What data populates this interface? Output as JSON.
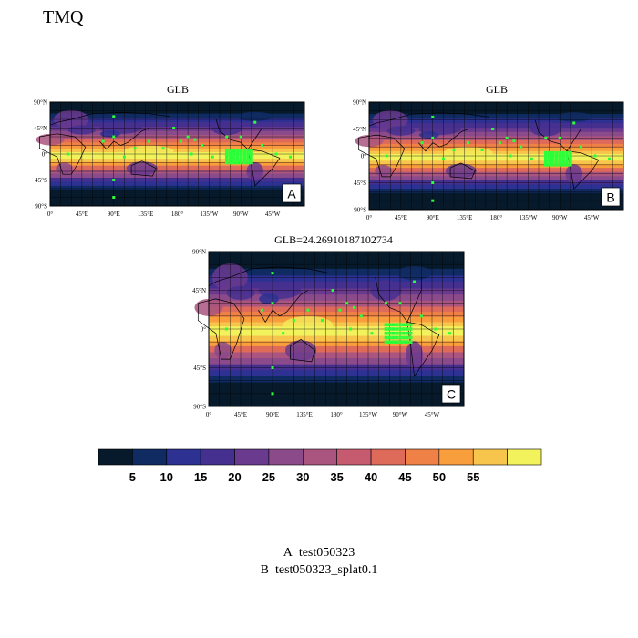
{
  "title": "TMQ",
  "panels": [
    {
      "title": "GLB",
      "letter": "A"
    },
    {
      "title": "GLB",
      "letter": "B"
    },
    {
      "title": "GLB=24.26910187102734",
      "letter": "C"
    }
  ],
  "axes": {
    "x_ticks": [
      "0°",
      "45°E",
      "90°E",
      "135°E",
      "180°",
      "135°W",
      "90°W",
      "45°W"
    ],
    "y_ticks": [
      "90°N",
      "45°N",
      "0°",
      "45°S",
      "90°S"
    ]
  },
  "colorbar": {
    "colors": [
      "#071a2b",
      "#0f2b62",
      "#2c3192",
      "#46308f",
      "#6a3a8f",
      "#8b4a8a",
      "#a9557f",
      "#c65b70",
      "#de6a5a",
      "#ef8146",
      "#f99e3c",
      "#f7c54b",
      "#f2f25d"
    ],
    "labels": [
      "5",
      "10",
      "15",
      "20",
      "25",
      "30",
      "35",
      "40",
      "45",
      "50",
      "55"
    ]
  },
  "legend": [
    {
      "key": "A",
      "name": "test050323"
    },
    {
      "key": "B",
      "name": "test050323_splat0.1"
    }
  ]
}
